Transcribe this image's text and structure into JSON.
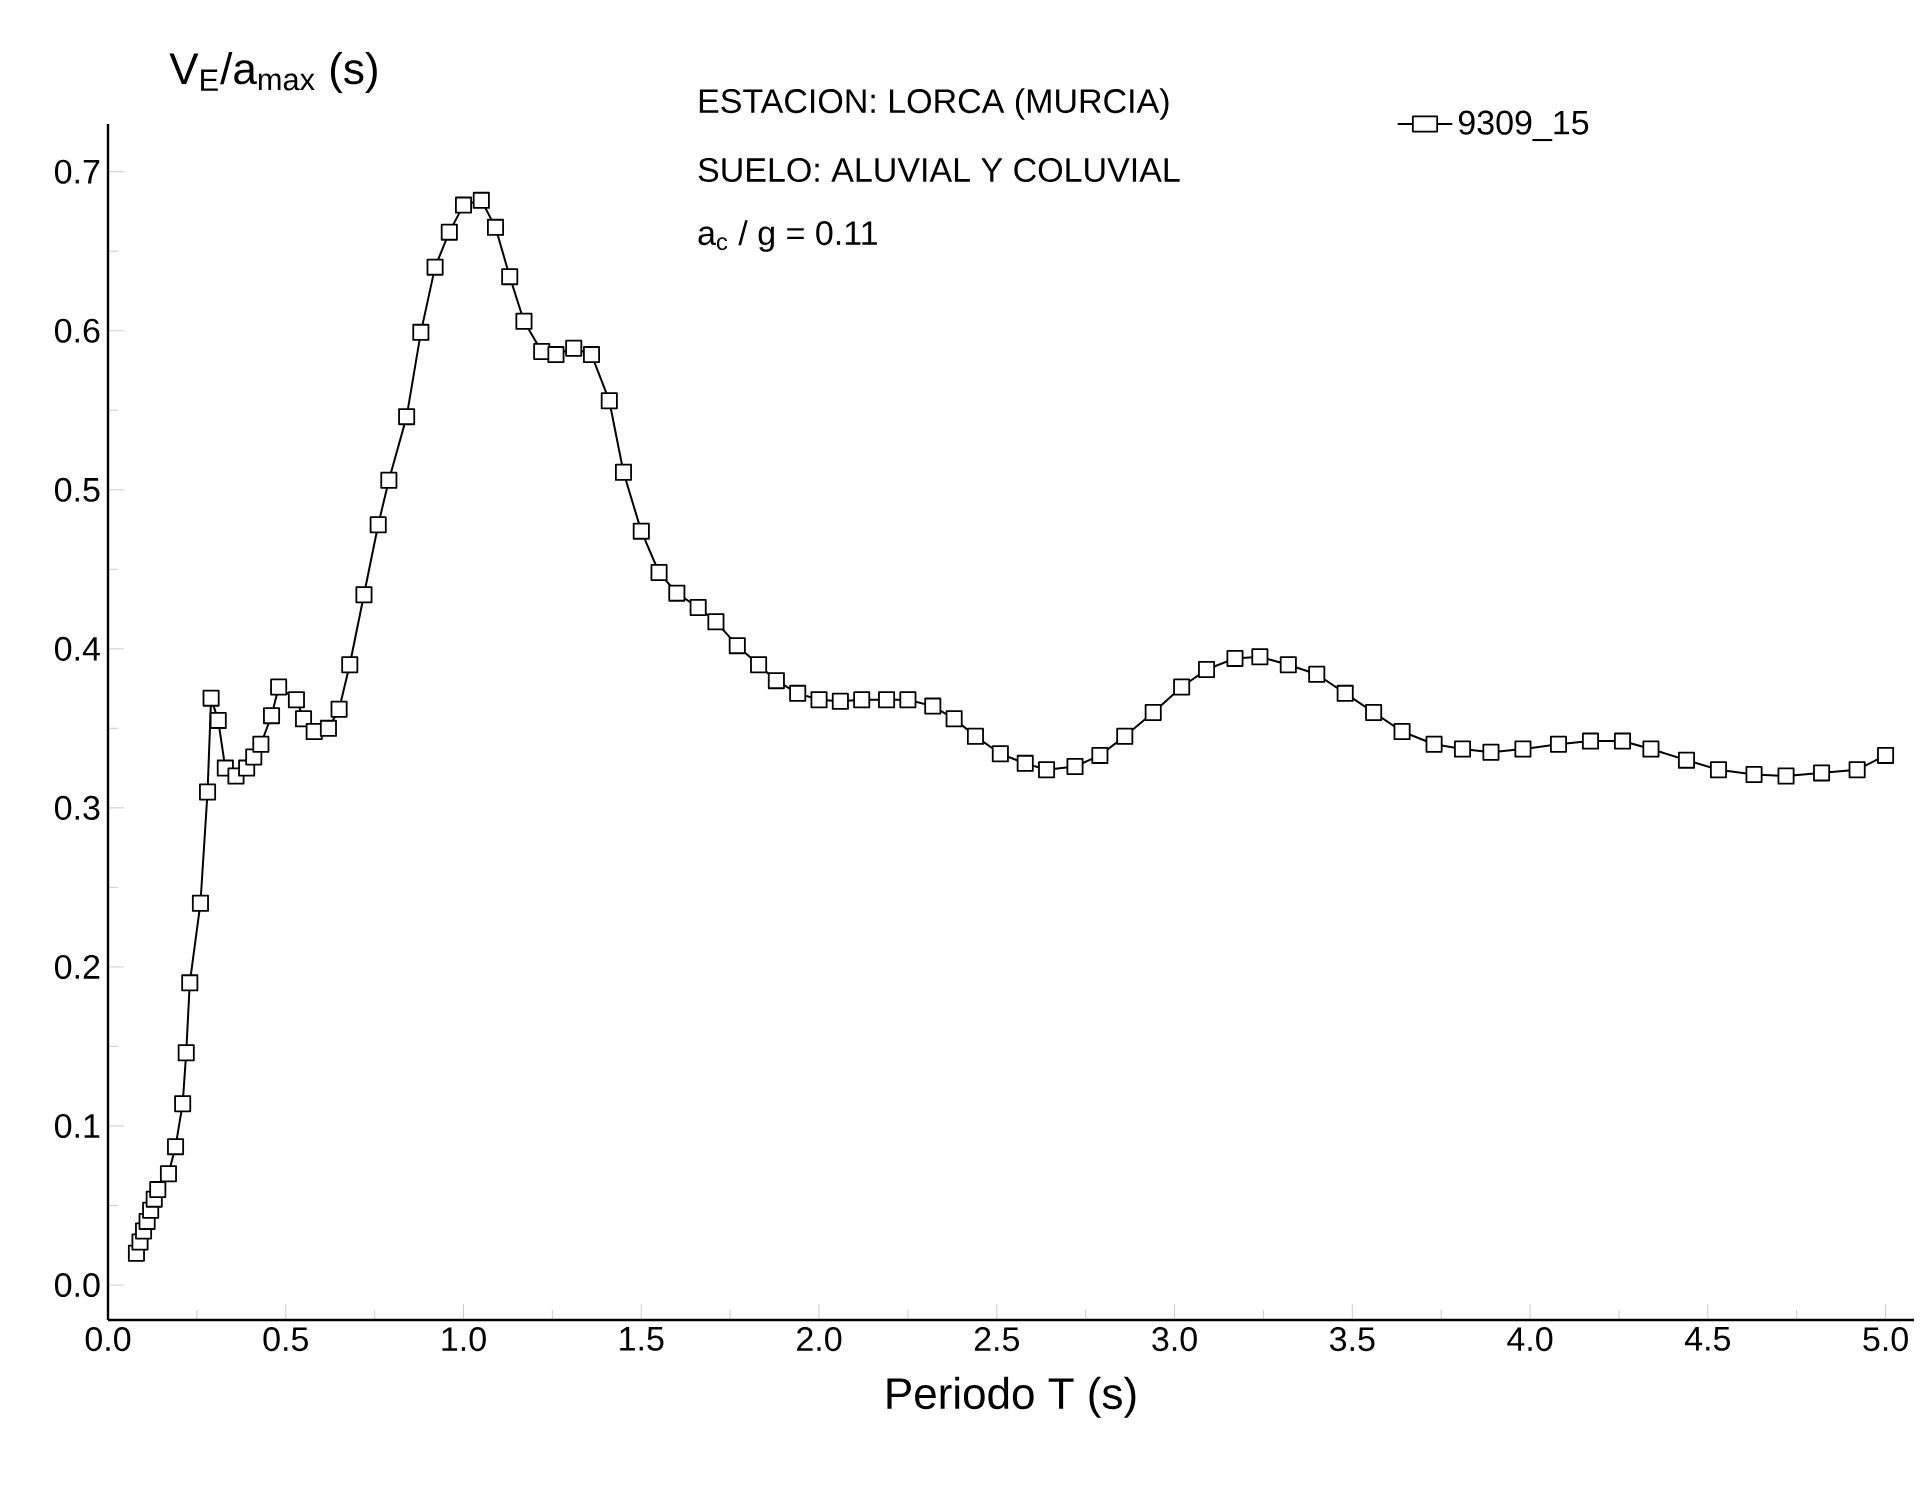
{
  "chart_data": {
    "type": "line",
    "xlabel": "Periodo T (s)",
    "ylabel": "V$_{E}$/a$_{max}$  (s)",
    "annotations": [
      "ESTACION: LORCA (MURCIA)",
      "SUELO: ALUVIAL Y COLUVIAL",
      "a$_{c}$ / g = 0.11"
    ],
    "xlim": [
      0,
      5.08
    ],
    "ylim": [
      -0.022,
      0.73
    ],
    "xticks": [
      {
        "value": 0,
        "label": "0.0"
      },
      0.5,
      {
        "value": 1,
        "label": "1.0"
      },
      1.5,
      {
        "value": 2,
        "label": "2.0"
      },
      2.5,
      {
        "value": 3,
        "label": "3.0"
      },
      3.5,
      {
        "value": 4,
        "label": "4.0"
      },
      4.5,
      {
        "value": 5,
        "label": "5.0"
      }
    ],
    "yticks": [
      {
        "value": 0,
        "label": "0.0"
      },
      0.1,
      0.2,
      0.3,
      0.4,
      0.5,
      0.6,
      0.7
    ],
    "legend": "top right",
    "marker": "square",
    "line_style": "solid",
    "series": [
      {
        "name": "9309_15",
        "color": "#000000",
        "x": [
          0.08,
          0.09,
          0.1,
          0.11,
          0.12,
          0.13,
          0.14,
          0.17,
          0.19,
          0.21,
          0.22,
          0.23,
          0.26,
          0.28,
          0.29,
          0.31,
          0.33,
          0.36,
          0.39,
          0.41,
          0.43,
          0.46,
          0.48,
          0.53,
          0.55,
          0.58,
          0.62,
          0.65,
          0.68,
          0.72,
          0.76,
          0.79,
          0.84,
          0.88,
          0.92,
          0.96,
          1.0,
          1.05,
          1.09,
          1.13,
          1.17,
          1.22,
          1.26,
          1.31,
          1.36,
          1.41,
          1.45,
          1.5,
          1.55,
          1.6,
          1.66,
          1.71,
          1.77,
          1.83,
          1.88,
          1.94,
          2.0,
          2.06,
          2.12,
          2.19,
          2.25,
          2.32,
          2.38,
          2.44,
          2.51,
          2.58,
          2.64,
          2.72,
          2.79,
          2.86,
          2.94,
          3.02,
          3.09,
          3.17,
          3.24,
          3.32,
          3.4,
          3.48,
          3.56,
          3.64,
          3.73,
          3.81,
          3.89,
          3.98,
          4.08,
          4.17,
          4.26,
          4.34,
          4.44,
          4.53,
          4.63,
          4.72,
          4.82,
          4.92,
          5.0
        ],
        "values": [
          0.02,
          0.027,
          0.034,
          0.04,
          0.047,
          0.054,
          0.06,
          0.07,
          0.087,
          0.114,
          0.146,
          0.19,
          0.24,
          0.31,
          0.369,
          0.355,
          0.325,
          0.32,
          0.325,
          0.332,
          0.34,
          0.358,
          0.376,
          0.368,
          0.356,
          0.348,
          0.35,
          0.362,
          0.39,
          0.434,
          0.478,
          0.506,
          0.546,
          0.599,
          0.64,
          0.662,
          0.679,
          0.682,
          0.665,
          0.634,
          0.606,
          0.587,
          0.585,
          0.589,
          0.585,
          0.556,
          0.511,
          0.474,
          0.448,
          0.435,
          0.426,
          0.417,
          0.402,
          0.39,
          0.38,
          0.372,
          0.368,
          0.367,
          0.368,
          0.368,
          0.368,
          0.364,
          0.356,
          0.345,
          0.334,
          0.328,
          0.324,
          0.326,
          0.333,
          0.345,
          0.36,
          0.376,
          0.387,
          0.394,
          0.395,
          0.39,
          0.384,
          0.372,
          0.36,
          0.348,
          0.34,
          0.337,
          0.335,
          0.337,
          0.34,
          0.342,
          0.342,
          0.337,
          0.33,
          0.324,
          0.321,
          0.32,
          0.322,
          0.324,
          0.333
        ]
      }
    ]
  }
}
